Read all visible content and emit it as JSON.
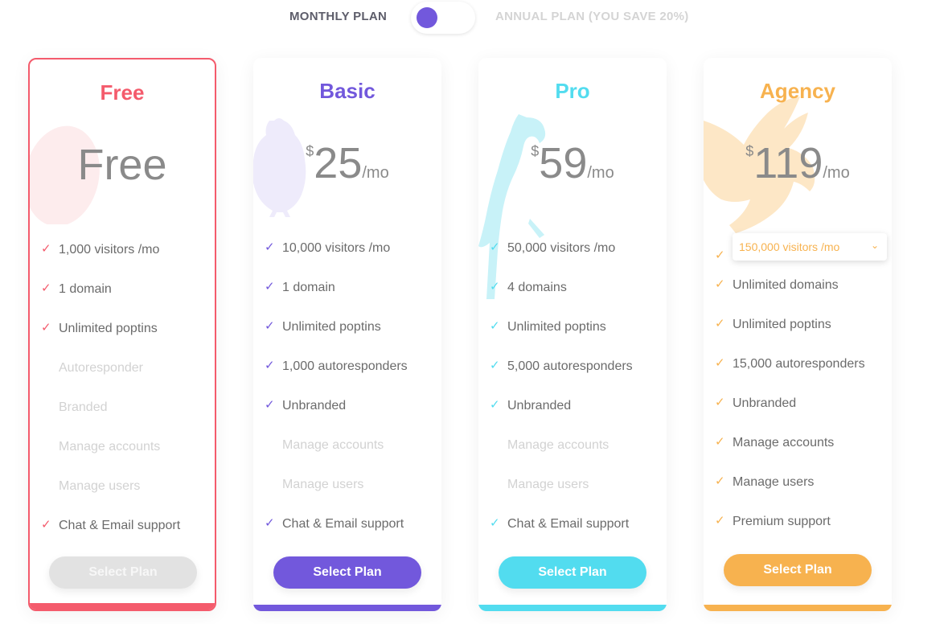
{
  "toggle": {
    "monthly_label": "MONTHLY PLAN",
    "annual_label": "ANNUAL PLAN (YOU SAVE 20%)"
  },
  "colors": {
    "free": "#f45b6c",
    "basic": "#7258dc",
    "pro": "#52dcef",
    "agency": "#f7b24f",
    "disabled": "#dcdcdc"
  },
  "plans": [
    {
      "title": "Free",
      "price": {
        "text": "Free"
      },
      "features": [
        {
          "text": "1,000 visitors /mo",
          "on": true
        },
        {
          "text": "1 domain",
          "on": true
        },
        {
          "text": "Unlimited poptins",
          "on": true
        },
        {
          "text": "Autoresponder",
          "on": false
        },
        {
          "text": "Branded",
          "on": false
        },
        {
          "text": "Manage accounts",
          "on": false
        },
        {
          "text": "Manage users",
          "on": false
        },
        {
          "text": "Chat & Email support",
          "on": true
        }
      ],
      "button": "Select Plan"
    },
    {
      "title": "Basic",
      "price": {
        "currency": "$",
        "amount": "25",
        "period": "/mo"
      },
      "features": [
        {
          "text": "10,000 visitors /mo",
          "on": true
        },
        {
          "text": "1 domain",
          "on": true
        },
        {
          "text": "Unlimited poptins",
          "on": true
        },
        {
          "text": "1,000 autoresponders",
          "on": true
        },
        {
          "text": "Unbranded",
          "on": true
        },
        {
          "text": "Manage accounts",
          "on": false
        },
        {
          "text": "Manage users",
          "on": false
        },
        {
          "text": "Chat & Email support",
          "on": true
        }
      ],
      "button": "Select Plan"
    },
    {
      "title": "Pro",
      "price": {
        "currency": "$",
        "amount": "59",
        "period": "/mo"
      },
      "features": [
        {
          "text": "50,000 visitors /mo",
          "on": true
        },
        {
          "text": "4 domains",
          "on": true
        },
        {
          "text": "Unlimited poptins",
          "on": true
        },
        {
          "text": "5,000 autoresponders",
          "on": true
        },
        {
          "text": "Unbranded",
          "on": true
        },
        {
          "text": "Manage accounts",
          "on": false
        },
        {
          "text": "Manage users",
          "on": false
        },
        {
          "text": "Chat & Email support",
          "on": true
        }
      ],
      "button": "Select Plan"
    },
    {
      "title": "Agency",
      "price": {
        "currency": "$",
        "amount": "119",
        "period": "/mo"
      },
      "dropdown": "150,000 visitors /mo",
      "features": [
        {
          "text": "Unlimited domains",
          "on": true
        },
        {
          "text": "Unlimited poptins",
          "on": true
        },
        {
          "text": "15,000 autoresponders",
          "on": true
        },
        {
          "text": "Unbranded",
          "on": true
        },
        {
          "text": "Manage accounts",
          "on": true
        },
        {
          "text": "Manage users",
          "on": true
        },
        {
          "text": "Premium support",
          "on": true
        }
      ],
      "button": "Select Plan"
    }
  ]
}
